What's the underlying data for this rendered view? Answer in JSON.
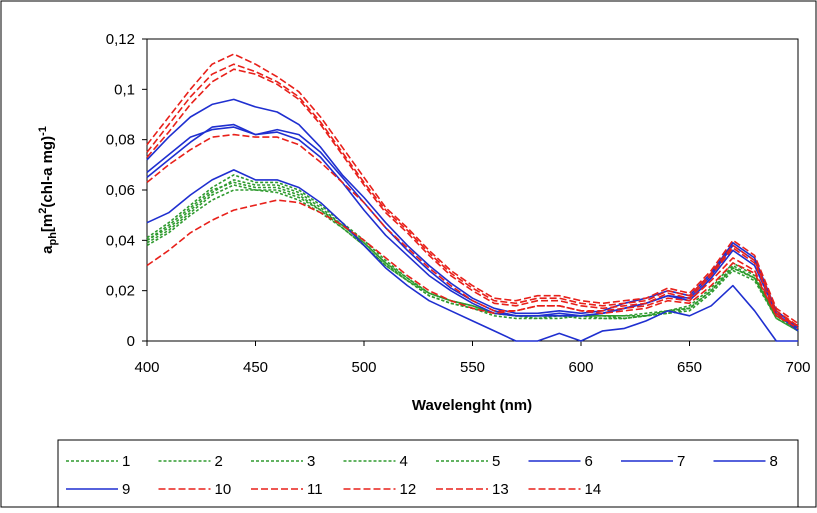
{
  "chart_data": {
    "type": "line",
    "title": "",
    "xlabel": "Wavelenght (nm)",
    "ylabel": {
      "main": "a",
      "sub": "ph",
      "bracket": "[m",
      "sup1": "2",
      "mid": "(chl-a mg)",
      "sup2": "-1"
    },
    "xlim": [
      400,
      700
    ],
    "ylim": [
      0,
      0.12
    ],
    "x_ticks": [
      400,
      450,
      500,
      550,
      600,
      650,
      700
    ],
    "x_tick_labels": [
      "400",
      "450",
      "500",
      "550",
      "600",
      "650",
      "700"
    ],
    "y_ticks": [
      0,
      0.02,
      0.04,
      0.06,
      0.08,
      0.1,
      0.12
    ],
    "y_tick_labels": [
      "0",
      "0,02",
      "0,04",
      "0,06",
      "0,08",
      "0,1",
      "0,12"
    ],
    "grid": false,
    "legend_position": "bottom",
    "x": [
      400,
      410,
      420,
      430,
      440,
      450,
      460,
      470,
      480,
      490,
      500,
      510,
      520,
      530,
      540,
      550,
      560,
      570,
      580,
      590,
      600,
      610,
      620,
      630,
      640,
      650,
      660,
      670,
      680,
      690,
      700
    ],
    "series": [
      {
        "name": "1",
        "color": "#2e9a2e",
        "dash": "3,2",
        "values": [
          0.04,
          0.045,
          0.052,
          0.059,
          0.064,
          0.062,
          0.062,
          0.059,
          0.053,
          0.046,
          0.039,
          0.031,
          0.025,
          0.019,
          0.016,
          0.014,
          0.011,
          0.01,
          0.01,
          0.01,
          0.01,
          0.01,
          0.009,
          0.01,
          0.012,
          0.013,
          0.02,
          0.03,
          0.025,
          0.009,
          0.004
        ]
      },
      {
        "name": "2",
        "color": "#2e9a2e",
        "dash": "3,2",
        "values": [
          0.041,
          0.047,
          0.054,
          0.061,
          0.066,
          0.063,
          0.063,
          0.06,
          0.054,
          0.047,
          0.04,
          0.032,
          0.025,
          0.019,
          0.016,
          0.014,
          0.011,
          0.01,
          0.01,
          0.01,
          0.01,
          0.01,
          0.01,
          0.011,
          0.012,
          0.014,
          0.021,
          0.031,
          0.026,
          0.01,
          0.004
        ]
      },
      {
        "name": "3",
        "color": "#2e9a2e",
        "dash": "3,2",
        "values": [
          0.038,
          0.043,
          0.05,
          0.056,
          0.06,
          0.06,
          0.059,
          0.056,
          0.051,
          0.045,
          0.038,
          0.03,
          0.024,
          0.018,
          0.015,
          0.013,
          0.011,
          0.01,
          0.009,
          0.009,
          0.01,
          0.009,
          0.009,
          0.01,
          0.011,
          0.012,
          0.019,
          0.028,
          0.024,
          0.009,
          0.004
        ]
      },
      {
        "name": "4",
        "color": "#2e9a2e",
        "dash": "3,2",
        "values": [
          0.04,
          0.046,
          0.053,
          0.06,
          0.063,
          0.061,
          0.061,
          0.058,
          0.052,
          0.046,
          0.039,
          0.031,
          0.024,
          0.018,
          0.015,
          0.013,
          0.01,
          0.009,
          0.009,
          0.01,
          0.009,
          0.009,
          0.009,
          0.01,
          0.011,
          0.013,
          0.02,
          0.029,
          0.025,
          0.01,
          0.005
        ]
      },
      {
        "name": "5",
        "color": "#2e9a2e",
        "dash": "3,2",
        "values": [
          0.039,
          0.044,
          0.051,
          0.058,
          0.062,
          0.06,
          0.06,
          0.057,
          0.052,
          0.045,
          0.038,
          0.03,
          0.024,
          0.019,
          0.016,
          0.014,
          0.011,
          0.01,
          0.01,
          0.01,
          0.01,
          0.01,
          0.01,
          0.01,
          0.012,
          0.013,
          0.02,
          0.029,
          0.025,
          0.01,
          0.005
        ]
      },
      {
        "name": "6",
        "color": "#1f2fd0",
        "dash": "",
        "values": [
          0.047,
          0.051,
          0.058,
          0.064,
          0.068,
          0.064,
          0.064,
          0.061,
          0.055,
          0.047,
          0.038,
          0.029,
          0.022,
          0.016,
          0.012,
          0.008,
          0.004,
          0.0,
          0.0,
          0.003,
          0.0,
          0.004,
          0.005,
          0.008,
          0.012,
          0.01,
          0.014,
          0.022,
          0.012,
          0.0,
          0.0
        ]
      },
      {
        "name": "7",
        "color": "#1f2fd0",
        "dash": "",
        "values": [
          0.065,
          0.072,
          0.079,
          0.085,
          0.086,
          0.082,
          0.084,
          0.082,
          0.075,
          0.065,
          0.055,
          0.045,
          0.036,
          0.028,
          0.021,
          0.016,
          0.012,
          0.01,
          0.01,
          0.01,
          0.01,
          0.011,
          0.013,
          0.015,
          0.018,
          0.017,
          0.026,
          0.038,
          0.032,
          0.012,
          0.005
        ]
      },
      {
        "name": "8",
        "color": "#1f2fd0",
        "dash": "",
        "values": [
          0.067,
          0.074,
          0.081,
          0.084,
          0.085,
          0.082,
          0.083,
          0.08,
          0.073,
          0.063,
          0.052,
          0.042,
          0.034,
          0.026,
          0.02,
          0.015,
          0.011,
          0.01,
          0.01,
          0.011,
          0.01,
          0.011,
          0.013,
          0.015,
          0.018,
          0.016,
          0.025,
          0.036,
          0.03,
          0.011,
          0.004
        ]
      },
      {
        "name": "9",
        "color": "#1f2fd0",
        "dash": "",
        "values": [
          0.072,
          0.081,
          0.089,
          0.094,
          0.096,
          0.093,
          0.091,
          0.086,
          0.077,
          0.066,
          0.057,
          0.047,
          0.038,
          0.03,
          0.023,
          0.017,
          0.013,
          0.011,
          0.011,
          0.012,
          0.011,
          0.012,
          0.015,
          0.017,
          0.02,
          0.018,
          0.027,
          0.039,
          0.033,
          0.012,
          0.005
        ]
      },
      {
        "name": "10",
        "color": "#e8201a",
        "dash": "7,3",
        "values": [
          0.03,
          0.036,
          0.043,
          0.048,
          0.052,
          0.054,
          0.056,
          0.055,
          0.051,
          0.046,
          0.04,
          0.033,
          0.026,
          0.02,
          0.016,
          0.013,
          0.011,
          0.012,
          0.014,
          0.014,
          0.012,
          0.011,
          0.012,
          0.013,
          0.016,
          0.015,
          0.022,
          0.031,
          0.027,
          0.01,
          0.005
        ]
      },
      {
        "name": "11",
        "color": "#e8201a",
        "dash": "7,3",
        "values": [
          0.073,
          0.083,
          0.094,
          0.103,
          0.108,
          0.106,
          0.102,
          0.096,
          0.086,
          0.074,
          0.062,
          0.051,
          0.043,
          0.034,
          0.026,
          0.02,
          0.015,
          0.014,
          0.016,
          0.016,
          0.014,
          0.013,
          0.014,
          0.015,
          0.019,
          0.017,
          0.026,
          0.037,
          0.031,
          0.011,
          0.006
        ]
      },
      {
        "name": "12",
        "color": "#e8201a",
        "dash": "7,3",
        "values": [
          0.075,
          0.086,
          0.097,
          0.106,
          0.11,
          0.107,
          0.103,
          0.097,
          0.087,
          0.075,
          0.063,
          0.052,
          0.044,
          0.035,
          0.027,
          0.021,
          0.016,
          0.015,
          0.017,
          0.017,
          0.015,
          0.014,
          0.015,
          0.016,
          0.02,
          0.018,
          0.027,
          0.038,
          0.032,
          0.012,
          0.006
        ]
      },
      {
        "name": "13",
        "color": "#e8201a",
        "dash": "7,3",
        "values": [
          0.078,
          0.089,
          0.1,
          0.11,
          0.114,
          0.11,
          0.105,
          0.099,
          0.089,
          0.077,
          0.065,
          0.053,
          0.045,
          0.036,
          0.028,
          0.022,
          0.017,
          0.016,
          0.018,
          0.018,
          0.016,
          0.015,
          0.016,
          0.017,
          0.021,
          0.019,
          0.028,
          0.04,
          0.034,
          0.013,
          0.007
        ]
      },
      {
        "name": "14",
        "color": "#e8201a",
        "dash": "7,3",
        "values": [
          0.063,
          0.07,
          0.076,
          0.081,
          0.082,
          0.081,
          0.081,
          0.078,
          0.071,
          0.063,
          0.055,
          0.045,
          0.037,
          0.029,
          0.022,
          0.016,
          0.012,
          0.012,
          0.014,
          0.014,
          0.012,
          0.012,
          0.013,
          0.014,
          0.017,
          0.016,
          0.024,
          0.033,
          0.028,
          0.01,
          0.006
        ]
      }
    ]
  }
}
